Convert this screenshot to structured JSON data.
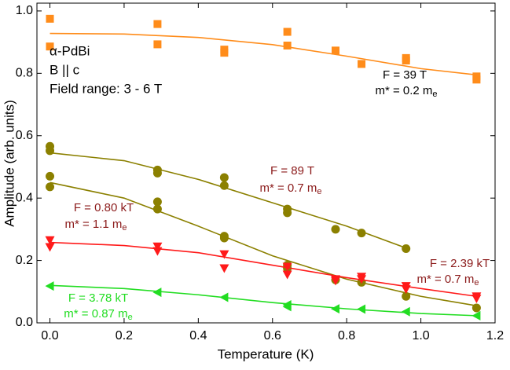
{
  "chart_data": {
    "type": "scatter",
    "xlabel": "Temperature (K)",
    "ylabel": "Amplitude (arb. units)",
    "info": [
      "α-PdBi",
      "B || c",
      "Field range: 3 - 6 T"
    ],
    "xlim": [
      -0.035,
      1.2
    ],
    "ylim": [
      0,
      1.025
    ],
    "xticks": [
      {
        "value": 0,
        "label": "0.0"
      },
      0.2,
      0.4,
      0.6,
      0.8,
      {
        "value": 1,
        "label": "1.0"
      },
      1.2
    ],
    "yticks": [
      {
        "value": 0,
        "label": "0.0"
      },
      0.2,
      0.4,
      0.6,
      0.8,
      {
        "value": 1,
        "label": "1.0"
      }
    ],
    "series": [
      {
        "color": "#ff8c1a",
        "marker": "square",
        "x": [
          0,
          0,
          0.29,
          0.29,
          0.47,
          0.47,
          0.64,
          0.64,
          0.77,
          0.84,
          0.96,
          0.96,
          1.15,
          1.15
        ],
        "values": [
          0.975,
          0.886,
          0.958,
          0.893,
          0.876,
          0.866,
          0.933,
          0.889,
          0.873,
          0.83,
          0.849,
          0.841,
          0.79,
          0.78
        ],
        "fit": {
          "x": [
            0,
            0.2,
            0.4,
            0.6,
            0.8,
            1.0,
            1.15
          ],
          "values": [
            0.928,
            0.926,
            0.915,
            0.892,
            0.855,
            0.815,
            0.795
          ]
        }
      },
      {
        "color": "#8b8000",
        "marker": "circle",
        "x": [
          0,
          0,
          0.29,
          0.29,
          0.47,
          0.47,
          0.64,
          0.64,
          0.77,
          0.84,
          0.96
        ],
        "values": [
          0.566,
          0.552,
          0.49,
          0.48,
          0.466,
          0.44,
          0.365,
          0.353,
          0.3,
          0.288,
          0.238
        ],
        "fit": {
          "x": [
            0,
            0.2,
            0.4,
            0.6,
            0.8,
            0.96
          ],
          "values": [
            0.545,
            0.52,
            0.46,
            0.385,
            0.31,
            0.24
          ]
        }
      },
      {
        "color": "#8b8000",
        "marker": "circle",
        "x": [
          0,
          0,
          0.29,
          0.29,
          0.47,
          0.47,
          0.64,
          0.64,
          0.77,
          0.84,
          0.96,
          1.15
        ],
        "values": [
          0.47,
          0.436,
          0.388,
          0.365,
          0.278,
          0.272,
          0.185,
          0.175,
          0.138,
          0.13,
          0.085,
          0.048
        ],
        "fit": {
          "x": [
            0,
            0.2,
            0.4,
            0.6,
            0.8,
            1.0,
            1.15
          ],
          "values": [
            0.45,
            0.4,
            0.31,
            0.215,
            0.14,
            0.085,
            0.055
          ]
        }
      },
      {
        "color": "#ff1a1a",
        "marker": "triangle-down",
        "x": [
          0,
          0,
          0.29,
          0.29,
          0.47,
          0.47,
          0.64,
          0.64,
          0.77,
          0.77,
          0.84,
          0.84,
          0.96,
          0.96,
          1.15,
          1.15
        ],
        "values": [
          0.265,
          0.243,
          0.245,
          0.23,
          0.22,
          0.175,
          0.18,
          0.155,
          0.14,
          0.135,
          0.148,
          0.14,
          0.118,
          0.108,
          0.085,
          0.078
        ],
        "fit": {
          "x": [
            0,
            0.2,
            0.4,
            0.6,
            0.8,
            1.0,
            1.15
          ],
          "values": [
            0.258,
            0.248,
            0.225,
            0.185,
            0.145,
            0.11,
            0.085
          ]
        }
      },
      {
        "color": "#22dd22",
        "marker": "triangle-left",
        "x": [
          0,
          0.29,
          0.47,
          0.64,
          0.64,
          0.77,
          0.84,
          0.96,
          1.15
        ],
        "values": [
          0.118,
          0.098,
          0.082,
          0.058,
          0.052,
          0.045,
          0.044,
          0.036,
          0.023
        ],
        "fit": {
          "x": [
            0,
            0.2,
            0.4,
            0.6,
            0.8,
            1.0,
            1.15
          ],
          "values": [
            0.12,
            0.11,
            0.09,
            0.065,
            0.045,
            0.03,
            0.023
          ]
        }
      }
    ],
    "annotations": [
      {
        "line1": "F = 39 T",
        "line2": "m* = 0.2 m",
        "sub": "e",
        "color": "#000000"
      },
      {
        "line1": "F = 89 T",
        "line2": "m* = 0.7 m",
        "sub": "e",
        "color": "#8b1a1a"
      },
      {
        "line1": "F = 0.80 kT",
        "line2": "m* = 1.1 m",
        "sub": "e",
        "color": "#8b1a1a"
      },
      {
        "line1": "F = 2.39 kT",
        "line2": "m* = 0.7 m",
        "sub": "e",
        "color": "#8b1a1a"
      },
      {
        "line1": "F = 3.78 kT",
        "line2": "m* = 0.87 m",
        "sub": "e",
        "color": "#22dd22"
      }
    ]
  }
}
